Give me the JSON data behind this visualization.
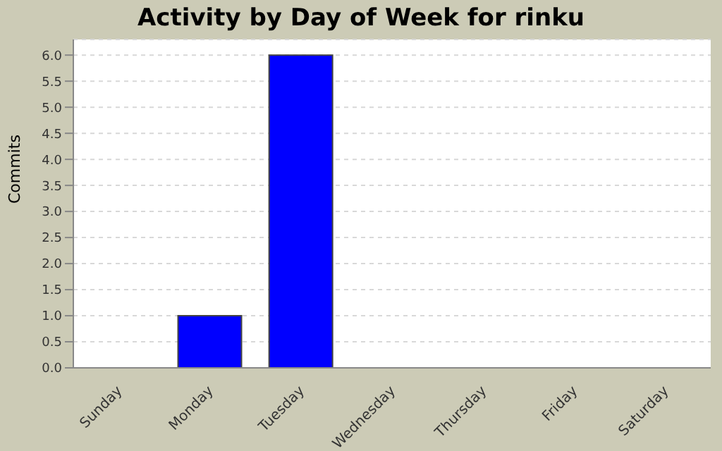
{
  "chart_data": {
    "type": "bar",
    "title": "Activity by Day of Week for rinku",
    "ylabel": "Commits",
    "categories": [
      "Sunday",
      "Monday",
      "Tuesday",
      "Wednesday",
      "Thursday",
      "Friday",
      "Saturday"
    ],
    "values": [
      0,
      1,
      6,
      0,
      0,
      0,
      0
    ],
    "color": "#0000ff",
    "ylim": [
      0,
      6.3
    ],
    "yticks": [
      {
        "value": 0,
        "label": "0.0"
      },
      0.5,
      {
        "value": 1,
        "label": "1.0"
      },
      1.5,
      {
        "value": 2,
        "label": "2.0"
      },
      2.5,
      {
        "value": 3,
        "label": "3.0"
      },
      3.5,
      {
        "value": 4,
        "label": "4.0"
      },
      4.5,
      {
        "value": 5,
        "label": "5.0"
      },
      5.5,
      {
        "value": 6,
        "label": "6.0"
      }
    ],
    "grid": "y",
    "legend": false
  }
}
